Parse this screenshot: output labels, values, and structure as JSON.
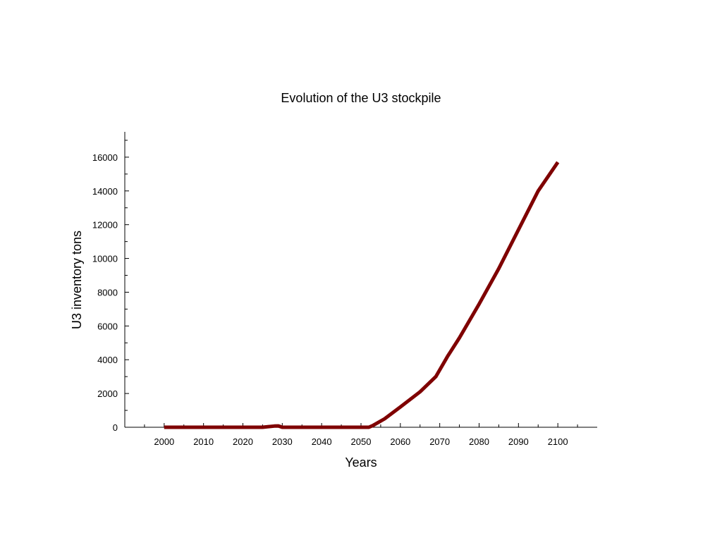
{
  "chart_data": {
    "type": "line",
    "title": "Evolution of the U3 stockpile",
    "xlabel": "Years",
    "ylabel": "U3 inventory tons",
    "xlim": [
      1990,
      2110
    ],
    "ylim": [
      0,
      17500
    ],
    "x_ticks": [
      2000,
      2010,
      2020,
      2030,
      2040,
      2050,
      2060,
      2070,
      2080,
      2090,
      2100
    ],
    "y_ticks": [
      0,
      2000,
      4000,
      6000,
      8000,
      10000,
      12000,
      14000,
      16000
    ],
    "grid": false,
    "line_color": "#7f0000",
    "series": [
      {
        "x": [
          2000,
          2010,
          2020,
          2025,
          2028,
          2029,
          2030,
          2040,
          2050,
          2052,
          2053,
          2056,
          2060,
          2065,
          2069,
          2072,
          2075,
          2080,
          2085,
          2090,
          2095,
          2100
        ],
        "values": [
          0,
          0,
          0,
          0,
          70,
          80,
          0,
          0,
          0,
          0,
          100,
          500,
          1200,
          2100,
          3000,
          4200,
          5300,
          7300,
          9400,
          11700,
          14000,
          15700
        ]
      }
    ]
  }
}
